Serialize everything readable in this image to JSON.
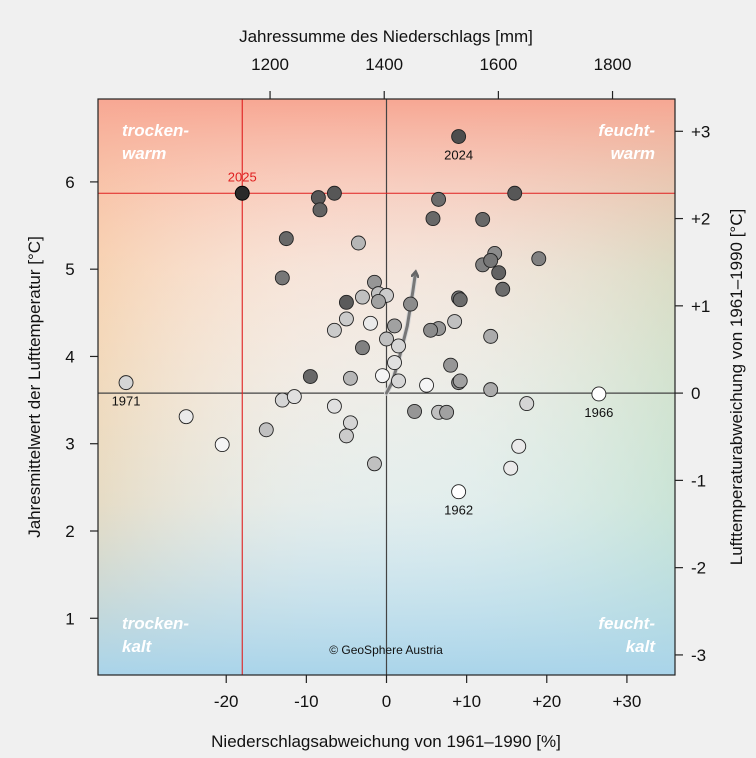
{
  "chart_data": {
    "type": "scatter",
    "top_axis_title": "Jahressumme des Niederschlags [mm]",
    "top_ticks": [
      "1200",
      "1400",
      "1600",
      "1800"
    ],
    "xlabel": "Niederschlagsabweichung von 1961–1990 [%]",
    "x_ticks": [
      "-20",
      "-10",
      "0",
      "+10",
      "+20",
      "+30"
    ],
    "ylabel": "Jahresmittelwert der Lufttemperatur [°C]",
    "y_ticks": [
      "1",
      "2",
      "3",
      "4",
      "5",
      "6"
    ],
    "right_axis_title": "Lufttemperaturabweichung von 1961–1990 [°C]",
    "right_ticks": [
      "+3",
      "+2",
      "+1",
      "0",
      "-1",
      "-2",
      "-3"
    ],
    "xlim": [
      -36,
      36
    ],
    "ylim": [
      0.35,
      6.95
    ],
    "reference": {
      "x": 0,
      "y": 3.58,
      "mean_precip_mm": 1404
    },
    "highlight": {
      "label": "2025",
      "x": -18,
      "y": 5.87,
      "color": "#e02020"
    },
    "quadrants": {
      "top_left": "trocken-\nwarm",
      "top_right": "feucht-\nwarm",
      "bottom_left": "trocken-\nkalt",
      "bottom_right": "feucht-\nkalt"
    },
    "copyright": "© GeoSphere Austria",
    "labeled_points": [
      {
        "label": "2024",
        "x": 9,
        "y": 6.52
      },
      {
        "label": "1971",
        "x": -32.5,
        "y": 3.7
      },
      {
        "label": "1966",
        "x": 26.5,
        "y": 3.57
      },
      {
        "label": "1962",
        "x": 9,
        "y": 2.45
      }
    ],
    "points": [
      [
        9,
        6.52,
        0.85
      ],
      [
        -6.5,
        5.87,
        0.8
      ],
      [
        -8.5,
        5.82,
        0.8
      ],
      [
        -8.3,
        5.68,
        0.75
      ],
      [
        16,
        5.87,
        0.8
      ],
      [
        6.5,
        5.8,
        0.7
      ],
      [
        5.8,
        5.58,
        0.72
      ],
      [
        12,
        5.57,
        0.72
      ],
      [
        -12.5,
        5.35,
        0.72
      ],
      [
        -3.5,
        5.3,
        0.35
      ],
      [
        13.5,
        5.18,
        0.55
      ],
      [
        12,
        5.05,
        0.6
      ],
      [
        13,
        5.1,
        0.65
      ],
      [
        14,
        4.96,
        0.75
      ],
      [
        19,
        5.12,
        0.6
      ],
      [
        -13,
        4.9,
        0.65
      ],
      [
        14.5,
        4.77,
        0.7
      ],
      [
        -1.5,
        4.85,
        0.5
      ],
      [
        -5,
        4.62,
        0.78
      ],
      [
        9,
        4.67,
        0.65
      ],
      [
        9.2,
        4.65,
        0.7
      ],
      [
        -1,
        4.72,
        0.3
      ],
      [
        0,
        4.7,
        0.25
      ],
      [
        -3,
        4.68,
        0.3
      ],
      [
        -1,
        4.63,
        0.45
      ],
      [
        3,
        4.6,
        0.55
      ],
      [
        -5,
        4.43,
        0.25
      ],
      [
        -2,
        4.38,
        0.1
      ],
      [
        1,
        4.35,
        0.45
      ],
      [
        6.5,
        4.32,
        0.5
      ],
      [
        -6.5,
        4.3,
        0.25
      ],
      [
        5.5,
        4.3,
        0.55
      ],
      [
        8.5,
        4.4,
        0.3
      ],
      [
        0,
        4.2,
        0.3
      ],
      [
        1.5,
        4.12,
        0.2
      ],
      [
        -3,
        4.1,
        0.6
      ],
      [
        13,
        4.23,
        0.4
      ],
      [
        8,
        3.9,
        0.5
      ],
      [
        1,
        3.93,
        0.15
      ],
      [
        -9.5,
        3.77,
        0.72
      ],
      [
        -4.5,
        3.75,
        0.35
      ],
      [
        -0.5,
        3.78,
        0.05
      ],
      [
        1.5,
        3.72,
        0.2
      ],
      [
        9,
        3.7,
        0.55
      ],
      [
        5,
        3.67,
        0.05
      ],
      [
        9.2,
        3.72,
        0.45
      ],
      [
        -32.5,
        3.7,
        0.2
      ],
      [
        26.5,
        3.57,
        0.0
      ],
      [
        13,
        3.62,
        0.4
      ],
      [
        17.5,
        3.46,
        0.2
      ],
      [
        -13,
        3.5,
        0.2
      ],
      [
        -11.5,
        3.54,
        0.15
      ],
      [
        -6.5,
        3.43,
        0.15
      ],
      [
        3.5,
        3.37,
        0.5
      ],
      [
        6.5,
        3.36,
        0.3
      ],
      [
        7.5,
        3.36,
        0.45
      ],
      [
        -25,
        3.31,
        0.1
      ],
      [
        -4.5,
        3.24,
        0.2
      ],
      [
        -5,
        3.09,
        0.25
      ],
      [
        -15,
        3.16,
        0.3
      ],
      [
        -20.5,
        2.99,
        0.05
      ],
      [
        16.5,
        2.97,
        0.1
      ],
      [
        15.5,
        2.72,
        0.1
      ],
      [
        -1.5,
        2.77,
        0.3
      ],
      [
        9,
        2.45,
        0.0
      ]
    ],
    "trend_arrow": [
      [
        0,
        3.58
      ],
      [
        0.7,
        3.7
      ],
      [
        1.5,
        3.95
      ],
      [
        2.6,
        4.35
      ],
      [
        3.3,
        4.75
      ],
      [
        3.6,
        4.95
      ]
    ]
  }
}
